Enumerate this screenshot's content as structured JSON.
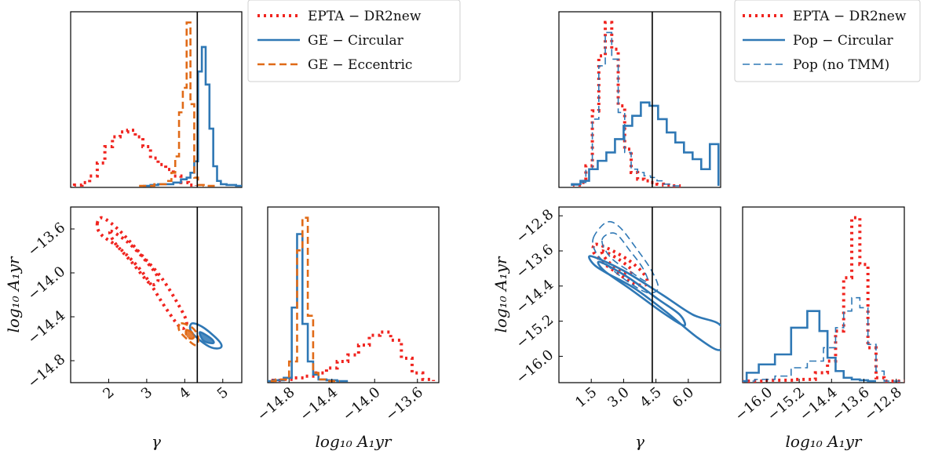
{
  "colors": {
    "epta": "#f0241f",
    "circular": "#2f78b5",
    "eccentric": "#e06a17",
    "truth": "#000000"
  },
  "chart_data": [
    {
      "type": "corner",
      "title": "",
      "legend_position": "top-right",
      "legend": [
        {
          "label": "EPTA − DR2new",
          "style": "dotted",
          "color": "epta"
        },
        {
          "label": "GE − Circular",
          "style": "solid",
          "color": "circular"
        },
        {
          "label": "GE − Eccentric",
          "style": "dashed",
          "color": "eccentric"
        }
      ],
      "params": [
        {
          "name": "gamma",
          "label": "γ",
          "range": [
            1.0,
            5.5
          ],
          "ticks": [
            2,
            3,
            4,
            5
          ],
          "tick_labels": [
            "2",
            "3",
            "4",
            "5"
          ]
        },
        {
          "name": "log10_A",
          "label": "log₁₀ A₁yr",
          "range": [
            -15.0,
            -13.4
          ],
          "ticks": [
            -14.8,
            -14.4,
            -14.0,
            -13.6
          ],
          "tick_labels": [
            "−14.8",
            "−14.4",
            "−14.0",
            "−13.6"
          ]
        }
      ],
      "truth": {
        "gamma": 4.33
      },
      "hist_gamma": [
        {
          "series": "EPTA − DR2new",
          "style": "dotted",
          "color": "epta",
          "x": [
            1.2,
            1.4,
            1.6,
            1.8,
            2.0,
            2.2,
            2.4,
            2.6,
            2.8,
            3.0,
            3.2,
            3.4,
            3.6,
            3.8,
            4.0,
            4.2
          ],
          "values": [
            0.005,
            0.02,
            0.06,
            0.14,
            0.24,
            0.3,
            0.33,
            0.34,
            0.3,
            0.24,
            0.17,
            0.13,
            0.1,
            0.06,
            0.02,
            0.005
          ]
        },
        {
          "series": "GE − Circular",
          "style": "solid",
          "color": "circular",
          "x": [
            3.0,
            3.2,
            3.4,
            3.6,
            3.8,
            4.0,
            4.1,
            4.2,
            4.3,
            4.4,
            4.5,
            4.6,
            4.7,
            4.8,
            4.9,
            5.0,
            5.2,
            5.5
          ],
          "values": [
            0.0,
            0.005,
            0.01,
            0.01,
            0.02,
            0.04,
            0.05,
            0.08,
            0.15,
            0.7,
            0.85,
            0.62,
            0.35,
            0.12,
            0.03,
            0.01,
            0.005,
            0.0
          ]
        },
        {
          "series": "GE − Eccentric",
          "style": "dashed",
          "color": "eccentric",
          "x": [
            3.0,
            3.4,
            3.6,
            3.7,
            3.8,
            3.9,
            4.0,
            4.1,
            4.2,
            4.3,
            4.4,
            4.6
          ],
          "values": [
            0.0,
            0.01,
            0.03,
            0.08,
            0.18,
            0.45,
            0.6,
            1.0,
            0.5,
            0.05,
            0.005,
            0.0
          ]
        }
      ],
      "hist_A": [
        {
          "series": "EPTA − DR2new",
          "style": "dotted",
          "color": "epta",
          "x": [
            -14.9,
            -14.8,
            -14.7,
            -14.6,
            -14.5,
            -14.4,
            -14.3,
            -14.2,
            -14.1,
            -14.0,
            -13.9,
            -13.8,
            -13.7,
            -13.6,
            -13.5
          ],
          "values": [
            0.005,
            0.01,
            0.02,
            0.03,
            0.05,
            0.08,
            0.12,
            0.16,
            0.22,
            0.28,
            0.3,
            0.25,
            0.14,
            0.05,
            0.01
          ]
        },
        {
          "series": "GE − Circular",
          "style": "solid",
          "color": "circular",
          "x": [
            -15.0,
            -14.9,
            -14.8,
            -14.75,
            -14.7,
            -14.65,
            -14.6,
            -14.55,
            -14.5,
            -14.4,
            -14.3
          ],
          "values": [
            0.0,
            0.005,
            0.02,
            0.45,
            0.9,
            0.35,
            0.12,
            0.04,
            0.01,
            0.005,
            0.0
          ]
        },
        {
          "series": "GE − Eccentric",
          "style": "dashed",
          "color": "eccentric",
          "x": [
            -15.0,
            -14.85,
            -14.75,
            -14.7,
            -14.65,
            -14.6,
            -14.55,
            -14.5,
            -14.4
          ],
          "values": [
            0.0,
            0.01,
            0.12,
            0.8,
            1.0,
            0.4,
            0.05,
            0.01,
            0.0
          ]
        }
      ],
      "contours_2d": [
        {
          "series": "EPTA − DR2new",
          "style": "dotted",
          "color": "epta",
          "level": "outer",
          "points": [
            [
              1.7,
              -13.55
            ],
            [
              1.85,
              -13.5
            ],
            [
              2.3,
              -13.62
            ],
            [
              2.9,
              -13.85
            ],
            [
              3.4,
              -14.05
            ],
            [
              3.85,
              -14.3
            ],
            [
              4.05,
              -14.45
            ],
            [
              3.9,
              -14.5
            ],
            [
              3.5,
              -14.32
            ],
            [
              2.9,
              -14.0
            ],
            [
              2.3,
              -13.78
            ],
            [
              1.8,
              -13.65
            ]
          ]
        },
        {
          "series": "EPTA − DR2new",
          "style": "dotted",
          "color": "epta",
          "level": "inner",
          "points": [
            [
              2.05,
              -13.62
            ],
            [
              2.5,
              -13.72
            ],
            [
              3.0,
              -13.9
            ],
            [
              3.3,
              -14.05
            ],
            [
              3.1,
              -14.1
            ],
            [
              2.6,
              -13.9
            ],
            [
              2.15,
              -13.72
            ]
          ]
        },
        {
          "series": "GE − Circular",
          "style": "solid",
          "color": "circular",
          "level": "outer",
          "points": [
            [
              4.2,
              -14.46
            ],
            [
              4.5,
              -14.5
            ],
            [
              4.9,
              -14.62
            ],
            [
              4.95,
              -14.68
            ],
            [
              4.7,
              -14.68
            ],
            [
              4.35,
              -14.6
            ],
            [
              4.15,
              -14.52
            ]
          ]
        },
        {
          "series": "GE − Circular",
          "style": "solid",
          "color": "circular",
          "level": "inner",
          "points": [
            [
              4.4,
              -14.54
            ],
            [
              4.7,
              -14.6
            ],
            [
              4.75,
              -14.64
            ],
            [
              4.5,
              -14.62
            ]
          ]
        },
        {
          "series": "GE − Eccentric",
          "style": "dashed",
          "color": "eccentric",
          "level": "outer",
          "points": [
            [
              3.9,
              -14.46
            ],
            [
              4.2,
              -14.5
            ],
            [
              4.35,
              -14.58
            ],
            [
              4.3,
              -14.66
            ],
            [
              4.05,
              -14.6
            ],
            [
              3.85,
              -14.52
            ]
          ]
        },
        {
          "series": "GE − Eccentric",
          "style": "dashed",
          "color": "eccentric",
          "level": "inner",
          "points": [
            [
              4.05,
              -14.52
            ],
            [
              4.25,
              -14.56
            ],
            [
              4.2,
              -14.6
            ],
            [
              4.05,
              -14.58
            ]
          ]
        }
      ]
    },
    {
      "type": "corner",
      "title": "",
      "legend_position": "top-right",
      "legend": [
        {
          "label": "EPTA − DR2new",
          "style": "dotted",
          "color": "epta"
        },
        {
          "label": "Pop − Circular",
          "style": "solid",
          "color": "circular"
        },
        {
          "label": "Pop (no TMM)",
          "style": "dashed",
          "color": "circular"
        }
      ],
      "params": [
        {
          "name": "gamma",
          "label": "γ",
          "range": [
            0.0,
            7.5
          ],
          "ticks": [
            1.5,
            3.0,
            4.5,
            6.0
          ],
          "tick_labels": [
            "1.5",
            "3.0",
            "4.5",
            "6.0"
          ]
        },
        {
          "name": "log10_A",
          "label": "log₁₀ A₁yr",
          "range": [
            -16.6,
            -12.6
          ],
          "ticks": [
            -16.0,
            -15.2,
            -14.4,
            -13.6,
            -12.8
          ],
          "tick_labels": [
            "−16.0",
            "−15.2",
            "−14.4",
            "−13.6",
            "−12.8"
          ]
        }
      ],
      "truth": {
        "gamma": 4.33
      },
      "hist_gamma": [
        {
          "series": "EPTA − DR2new",
          "style": "dotted",
          "color": "epta",
          "x": [
            0.8,
            1.1,
            1.4,
            1.7,
            2.0,
            2.3,
            2.6,
            2.9,
            3.2,
            3.5,
            3.8,
            4.1,
            4.4,
            4.7,
            5.0,
            5.5
          ],
          "values": [
            0.005,
            0.02,
            0.12,
            0.45,
            0.78,
            0.98,
            0.82,
            0.48,
            0.22,
            0.08,
            0.04,
            0.03,
            0.02,
            0.01,
            0.005,
            0.0
          ]
        },
        {
          "series": "Pop − Circular",
          "style": "solid",
          "color": "circular",
          "x": [
            0.8,
            1.2,
            1.6,
            2.0,
            2.4,
            2.8,
            3.2,
            3.6,
            4.0,
            4.4,
            4.8,
            5.2,
            5.6,
            6.0,
            6.4,
            6.8,
            7.2
          ],
          "values": [
            0.01,
            0.03,
            0.1,
            0.15,
            0.2,
            0.28,
            0.36,
            0.42,
            0.5,
            0.48,
            0.4,
            0.32,
            0.26,
            0.2,
            0.16,
            0.1,
            0.25
          ]
        },
        {
          "series": "Pop (no TMM)",
          "style": "dashed",
          "color": "circular",
          "x": [
            0.8,
            1.1,
            1.4,
            1.7,
            2.0,
            2.3,
            2.6,
            2.9,
            3.2,
            3.5,
            3.8,
            4.1,
            4.4,
            4.7,
            5.0,
            5.5
          ],
          "values": [
            0.005,
            0.02,
            0.1,
            0.4,
            0.72,
            0.92,
            0.76,
            0.44,
            0.2,
            0.1,
            0.08,
            0.06,
            0.05,
            0.03,
            0.01,
            0.0
          ]
        }
      ],
      "hist_A": [
        {
          "series": "EPTA − DR2new",
          "style": "dotted",
          "color": "epta",
          "x": [
            -16.6,
            -15.6,
            -15.0,
            -14.6,
            -14.4,
            -14.2,
            -14.0,
            -13.8,
            -13.6,
            -13.4,
            -13.2,
            -13.0
          ],
          "values": [
            0.0,
            0.005,
            0.01,
            0.05,
            0.12,
            0.3,
            0.62,
            0.98,
            0.7,
            0.2,
            0.02,
            0.0
          ]
        },
        {
          "series": "Pop − Circular",
          "style": "solid",
          "color": "circular",
          "x": [
            -16.6,
            -16.4,
            -16.0,
            -15.6,
            -15.2,
            -14.8,
            -14.6,
            -14.4,
            -14.2,
            -14.0,
            -13.8,
            -13.6,
            -13.4
          ],
          "values": [
            0.0,
            0.05,
            0.1,
            0.16,
            0.32,
            0.42,
            0.3,
            0.14,
            0.06,
            0.02,
            0.01,
            0.005,
            0.0
          ]
        },
        {
          "series": "Pop (no TMM)",
          "style": "dashed",
          "color": "circular",
          "x": [
            -16.6,
            -16.0,
            -15.6,
            -15.2,
            -14.8,
            -14.4,
            -14.2,
            -14.0,
            -13.8,
            -13.6,
            -13.4,
            -13.2,
            -13.0
          ],
          "values": [
            0.0,
            0.01,
            0.03,
            0.08,
            0.12,
            0.2,
            0.32,
            0.42,
            0.5,
            0.44,
            0.22,
            0.06,
            0.0
          ]
        }
      ],
      "contours_2d": [
        {
          "series": "EPTA − DR2new",
          "style": "dotted",
          "color": "epta",
          "level": "outer",
          "points": [
            [
              1.7,
              -13.45
            ],
            [
              2.3,
              -13.55
            ],
            [
              3.2,
              -13.8
            ],
            [
              3.9,
              -14.1
            ],
            [
              4.1,
              -14.35
            ],
            [
              3.5,
              -14.35
            ],
            [
              2.7,
              -14.1
            ],
            [
              2.0,
              -13.85
            ],
            [
              1.6,
              -13.62
            ]
          ]
        },
        {
          "series": "EPTA − DR2new",
          "style": "dotted",
          "color": "epta",
          "level": "inner",
          "points": [
            [
              2.0,
              -13.6
            ],
            [
              2.8,
              -13.8
            ],
            [
              3.4,
              -14.05
            ],
            [
              3.0,
              -14.1
            ],
            [
              2.3,
              -13.85
            ]
          ]
        },
        {
          "series": "Pop − Circular",
          "style": "solid",
          "color": "circular",
          "level": "outer",
          "points": [
            [
              1.5,
              -13.72
            ],
            [
              3.0,
              -14.05
            ],
            [
              4.8,
              -14.6
            ],
            [
              6.2,
              -15.05
            ],
            [
              7.5,
              -15.3
            ],
            [
              7.5,
              -15.85
            ],
            [
              6.5,
              -15.6
            ],
            [
              5.0,
              -15.0
            ],
            [
              3.5,
              -14.45
            ],
            [
              2.2,
              -14.1
            ],
            [
              1.6,
              -13.9
            ]
          ]
        },
        {
          "series": "Pop − Circular",
          "style": "solid",
          "color": "circular",
          "level": "inner",
          "points": [
            [
              1.9,
              -13.85
            ],
            [
              3.2,
              -14.2
            ],
            [
              4.6,
              -14.7
            ],
            [
              5.6,
              -15.05
            ],
            [
              5.8,
              -15.3
            ],
            [
              4.8,
              -15.0
            ],
            [
              3.4,
              -14.5
            ],
            [
              2.1,
              -14.05
            ]
          ]
        },
        {
          "series": "Pop (no TMM)",
          "style": "dashed",
          "color": "circular",
          "level": "outer",
          "points": [
            [
              1.6,
              -13.3
            ],
            [
              2.2,
              -12.95
            ],
            [
              2.8,
              -13.05
            ],
            [
              3.6,
              -13.55
            ],
            [
              4.3,
              -14.05
            ],
            [
              4.6,
              -14.45
            ],
            [
              4.1,
              -14.55
            ],
            [
              3.2,
              -14.3
            ],
            [
              2.3,
              -13.95
            ],
            [
              1.7,
              -13.62
            ]
          ]
        },
        {
          "series": "Pop (no TMM)",
          "style": "dashed",
          "color": "circular",
          "level": "inner",
          "points": [
            [
              2.0,
              -13.35
            ],
            [
              2.6,
              -13.2
            ],
            [
              3.3,
              -13.6
            ],
            [
              3.9,
              -14.0
            ],
            [
              4.1,
              -14.3
            ],
            [
              3.4,
              -14.1
            ],
            [
              2.4,
              -13.75
            ]
          ]
        }
      ]
    }
  ]
}
